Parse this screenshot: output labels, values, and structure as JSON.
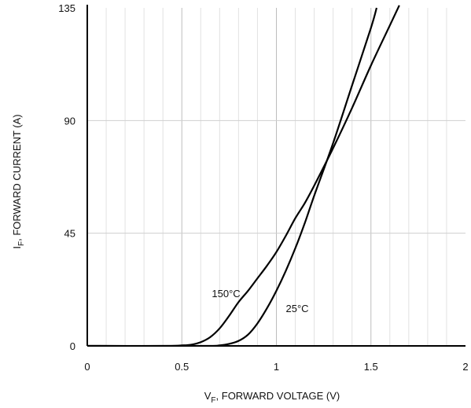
{
  "chart_data": {
    "type": "line",
    "xlabel_main": "V",
    "xlabel_sub": "F",
    "xlabel_rest": ", FORWARD VOLTAGE (V)",
    "ylabel_main": "I",
    "ylabel_sub": "F",
    "ylabel_rest": ", FORWARD CURRENT (A)",
    "xlim": [
      0,
      2
    ],
    "ylim": [
      0,
      135
    ],
    "x_ticks": [
      {
        "value": 0,
        "label": "0"
      },
      {
        "value": 0.5,
        "label": "0.5"
      },
      {
        "value": 1,
        "label": "1"
      },
      {
        "value": 1.5,
        "label": "1.5"
      },
      {
        "value": 2,
        "label": "2"
      }
    ],
    "y_ticks": [
      {
        "value": 0,
        "label": "0"
      },
      {
        "value": 45,
        "label": "45"
      },
      {
        "value": 90,
        "label": "90"
      },
      {
        "value": 135,
        "label": "135"
      }
    ],
    "grid": true,
    "series": [
      {
        "name": "150°C",
        "label_at": {
          "x": 0.75,
          "y": 21
        },
        "points": [
          [
            0,
            0
          ],
          [
            0.4,
            0
          ],
          [
            0.5,
            0.2
          ],
          [
            0.55,
            0.5
          ],
          [
            0.6,
            1.5
          ],
          [
            0.65,
            3.5
          ],
          [
            0.7,
            7
          ],
          [
            0.75,
            12
          ],
          [
            0.8,
            17.5
          ],
          [
            0.85,
            22
          ],
          [
            0.9,
            27
          ],
          [
            0.95,
            32
          ],
          [
            1.0,
            37.5
          ],
          [
            1.05,
            44
          ],
          [
            1.1,
            51
          ],
          [
            1.15,
            57
          ],
          [
            1.2,
            64
          ],
          [
            1.3,
            79
          ],
          [
            1.4,
            95
          ],
          [
            1.5,
            112
          ],
          [
            1.6,
            128
          ],
          [
            1.65,
            136
          ]
        ]
      },
      {
        "name": "25°C",
        "label_at": {
          "x": 1.05,
          "y": 15
        },
        "points": [
          [
            0,
            0
          ],
          [
            0.6,
            0
          ],
          [
            0.7,
            0.2
          ],
          [
            0.75,
            0.8
          ],
          [
            0.8,
            2
          ],
          [
            0.85,
            4.5
          ],
          [
            0.9,
            9
          ],
          [
            0.95,
            15
          ],
          [
            1.0,
            22
          ],
          [
            1.05,
            30
          ],
          [
            1.1,
            39
          ],
          [
            1.15,
            49
          ],
          [
            1.2,
            60
          ],
          [
            1.3,
            81
          ],
          [
            1.4,
            104
          ],
          [
            1.5,
            127
          ],
          [
            1.53,
            135
          ]
        ]
      }
    ]
  }
}
